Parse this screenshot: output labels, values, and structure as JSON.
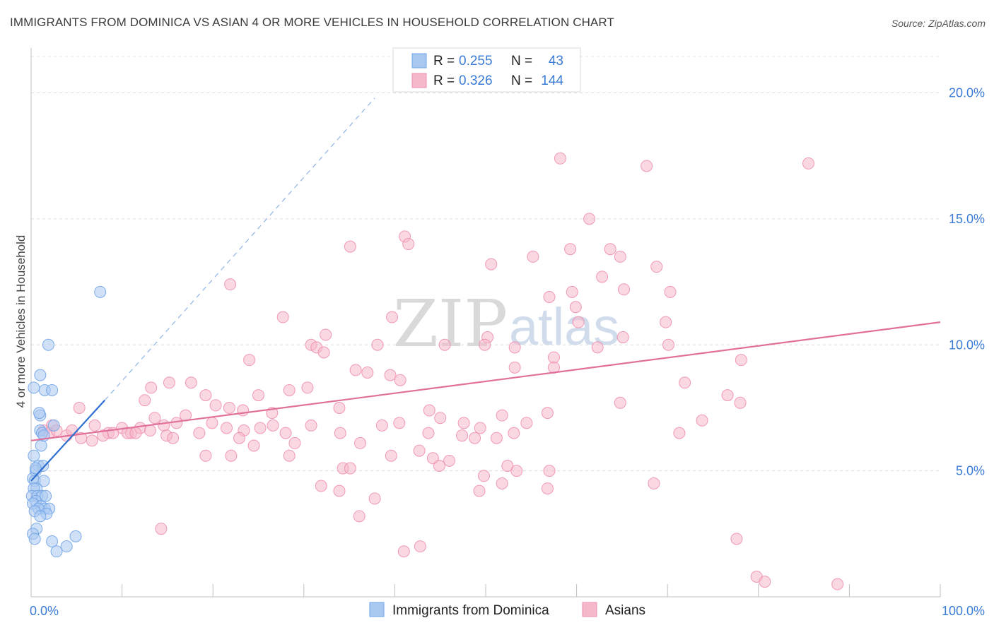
{
  "header": {
    "title": "IMMIGRANTS FROM DOMINICA VS ASIAN 4 OR MORE VEHICLES IN HOUSEHOLD CORRELATION CHART",
    "source": "Source: ZipAtlas.com"
  },
  "watermark": {
    "zip": "ZIP",
    "atlas": "atlas"
  },
  "legend_top": {
    "rows": [
      {
        "r_label": "R =",
        "r_value": "0.255",
        "n_label": "N =",
        "n_value": "43",
        "color": "#a9c8f0"
      },
      {
        "r_label": "R =",
        "r_value": "0.326",
        "n_label": "N =",
        "n_value": "144",
        "color": "#f5b8cb"
      }
    ]
  },
  "legend_bottom": {
    "items": [
      {
        "label": "Immigrants from Dominica",
        "color": "#a9c8f0"
      },
      {
        "label": "Asians",
        "color": "#f5b8cb"
      }
    ]
  },
  "chart_data": {
    "type": "scatter",
    "title": "IMMIGRANTS FROM DOMINICA VS ASIAN 4 OR MORE VEHICLES IN HOUSEHOLD CORRELATION CHART",
    "xlabel": "",
    "ylabel": "4 or more Vehicles in Household",
    "xlim": [
      0,
      100
    ],
    "ylim": [
      0,
      21.5
    ],
    "x_tick_labels": [
      "0.0%",
      "100.0%"
    ],
    "y_ticks": [
      5,
      10,
      15,
      20
    ],
    "y_tick_labels": [
      "5.0%",
      "10.0%",
      "15.0%",
      "20.0%"
    ],
    "grid": true,
    "legend_position": "top-center",
    "series": [
      {
        "name": "Immigrants from Dominica",
        "color": "#6fa3e8",
        "fill": "#a9c8f0",
        "trend": {
          "x": [
            0,
            8.1
          ],
          "y": [
            4.6,
            7.8
          ],
          "style": "solid",
          "color": "#2f6fd1"
        },
        "trend_extension": {
          "x": [
            8.1,
            37.8
          ],
          "y": [
            7.8,
            19.8
          ],
          "style": "dashed",
          "color": "#8fb4e6"
        },
        "points": [
          [
            0.3,
            8.3
          ],
          [
            1.5,
            8.2
          ],
          [
            2.3,
            8.2
          ],
          [
            1.0,
            8.8
          ],
          [
            1.9,
            10.0
          ],
          [
            7.6,
            12.1
          ],
          [
            1.0,
            7.2
          ],
          [
            2.5,
            6.8
          ],
          [
            1.0,
            6.6
          ],
          [
            1.2,
            6.5
          ],
          [
            1.1,
            6.0
          ],
          [
            0.3,
            5.6
          ],
          [
            0.8,
            5.2
          ],
          [
            1.3,
            5.2
          ],
          [
            0.5,
            5.0
          ],
          [
            0.2,
            4.7
          ],
          [
            0.4,
            4.6
          ],
          [
            1.4,
            4.6
          ],
          [
            0.6,
            4.3
          ],
          [
            0.3,
            4.3
          ],
          [
            0.1,
            4.0
          ],
          [
            0.7,
            4.0
          ],
          [
            1.2,
            4.0
          ],
          [
            1.6,
            4.0
          ],
          [
            0.5,
            3.8
          ],
          [
            0.2,
            3.7
          ],
          [
            1.1,
            3.6
          ],
          [
            1.5,
            3.5
          ],
          [
            0.8,
            3.5
          ],
          [
            2.0,
            3.5
          ],
          [
            0.4,
            3.4
          ],
          [
            1.7,
            3.3
          ],
          [
            1.0,
            3.2
          ],
          [
            0.6,
            2.7
          ],
          [
            0.2,
            2.5
          ],
          [
            0.4,
            2.3
          ],
          [
            2.3,
            2.2
          ],
          [
            4.9,
            2.4
          ],
          [
            3.9,
            2.0
          ],
          [
            2.8,
            1.8
          ],
          [
            0.9,
            7.3
          ],
          [
            1.4,
            6.4
          ],
          [
            0.5,
            5.1
          ]
        ]
      },
      {
        "name": "Asians",
        "color": "#ee8fae",
        "fill": "#f5b8cb",
        "trend": {
          "x": [
            0,
            100
          ],
          "y": [
            6.2,
            10.9
          ],
          "style": "solid",
          "color": "#e0709a"
        },
        "points": [
          [
            58.2,
            17.4
          ],
          [
            67.7,
            17.1
          ],
          [
            85.5,
            17.2
          ],
          [
            41.1,
            14.3
          ],
          [
            41.5,
            14.0
          ],
          [
            35.1,
            13.9
          ],
          [
            61.4,
            15.0
          ],
          [
            55.2,
            13.5
          ],
          [
            59.3,
            13.8
          ],
          [
            63.7,
            13.8
          ],
          [
            64.8,
            13.5
          ],
          [
            68.8,
            13.1
          ],
          [
            50.6,
            13.2
          ],
          [
            62.8,
            12.7
          ],
          [
            21.9,
            12.4
          ],
          [
            65.2,
            12.2
          ],
          [
            59.5,
            12.1
          ],
          [
            57.0,
            11.9
          ],
          [
            70.3,
            12.1
          ],
          [
            59.9,
            11.5
          ],
          [
            27.7,
            11.1
          ],
          [
            39.7,
            11.1
          ],
          [
            60.2,
            10.9
          ],
          [
            69.8,
            10.9
          ],
          [
            32.4,
            10.4
          ],
          [
            50.2,
            10.3
          ],
          [
            65.1,
            10.3
          ],
          [
            30.8,
            10.0
          ],
          [
            38.1,
            10.0
          ],
          [
            45.5,
            10.0
          ],
          [
            49.9,
            10.0
          ],
          [
            70.1,
            10.0
          ],
          [
            62.3,
            9.9
          ],
          [
            53.2,
            9.9
          ],
          [
            57.5,
            9.5
          ],
          [
            31.4,
            9.9
          ],
          [
            32.2,
            9.7
          ],
          [
            35.7,
            9.0
          ],
          [
            37.0,
            8.9
          ],
          [
            53.2,
            9.1
          ],
          [
            39.5,
            8.8
          ],
          [
            78.1,
            9.4
          ],
          [
            24.0,
            9.4
          ],
          [
            40.6,
            8.6
          ],
          [
            57.5,
            9.1
          ],
          [
            15.2,
            8.5
          ],
          [
            30.4,
            8.3
          ],
          [
            28.4,
            8.2
          ],
          [
            13.2,
            8.3
          ],
          [
            17.6,
            8.5
          ],
          [
            25.0,
            8.0
          ],
          [
            71.9,
            8.5
          ],
          [
            76.6,
            8.0
          ],
          [
            12.5,
            7.8
          ],
          [
            19.2,
            8.0
          ],
          [
            20.3,
            7.6
          ],
          [
            21.8,
            7.5
          ],
          [
            23.3,
            7.4
          ],
          [
            26.5,
            7.3
          ],
          [
            33.9,
            7.5
          ],
          [
            43.8,
            7.4
          ],
          [
            45.0,
            7.1
          ],
          [
            47.6,
            6.9
          ],
          [
            49.4,
            6.7
          ],
          [
            51.8,
            7.2
          ],
          [
            54.5,
            6.9
          ],
          [
            56.8,
            7.3
          ],
          [
            64.8,
            7.7
          ],
          [
            73.8,
            7.0
          ],
          [
            78.0,
            7.7
          ],
          [
            5.3,
            7.5
          ],
          [
            7.0,
            6.8
          ],
          [
            8.5,
            6.5
          ],
          [
            10.0,
            6.7
          ],
          [
            11.0,
            6.5
          ],
          [
            12.0,
            6.7
          ],
          [
            13.6,
            7.1
          ],
          [
            14.6,
            6.8
          ],
          [
            16.0,
            6.9
          ],
          [
            17.0,
            7.2
          ],
          [
            18.5,
            6.5
          ],
          [
            19.9,
            6.9
          ],
          [
            21.5,
            6.7
          ],
          [
            23.4,
            6.6
          ],
          [
            25.2,
            6.7
          ],
          [
            26.6,
            6.8
          ],
          [
            28.0,
            6.5
          ],
          [
            30.8,
            6.8
          ],
          [
            34.0,
            6.5
          ],
          [
            38.6,
            6.8
          ],
          [
            40.5,
            6.9
          ],
          [
            43.7,
            6.5
          ],
          [
            47.4,
            6.4
          ],
          [
            48.8,
            6.3
          ],
          [
            51.2,
            6.3
          ],
          [
            53.1,
            6.5
          ],
          [
            2.3,
            6.8
          ],
          [
            1.4,
            6.6
          ],
          [
            3.9,
            6.4
          ],
          [
            5.5,
            6.3
          ],
          [
            6.7,
            6.2
          ],
          [
            9.0,
            6.5
          ],
          [
            2.0,
            6.5
          ],
          [
            2.8,
            6.6
          ],
          [
            4.5,
            6.6
          ],
          [
            7.9,
            6.4
          ],
          [
            10.6,
            6.5
          ],
          [
            11.5,
            6.5
          ],
          [
            13.1,
            6.6
          ],
          [
            14.9,
            6.4
          ],
          [
            15.6,
            6.3
          ],
          [
            22.9,
            6.3
          ],
          [
            24.5,
            6.0
          ],
          [
            29.0,
            6.1
          ],
          [
            36.2,
            6.1
          ],
          [
            39.6,
            5.6
          ],
          [
            42.7,
            5.8
          ],
          [
            44.2,
            5.5
          ],
          [
            46.0,
            5.4
          ],
          [
            53.4,
            5.0
          ],
          [
            19.2,
            5.6
          ],
          [
            22.0,
            5.6
          ],
          [
            28.4,
            5.6
          ],
          [
            34.3,
            5.1
          ],
          [
            35.1,
            5.1
          ],
          [
            37.8,
            3.9
          ],
          [
            44.9,
            5.2
          ],
          [
            49.8,
            4.8
          ],
          [
            52.4,
            5.2
          ],
          [
            57.0,
            5.0
          ],
          [
            68.5,
            4.5
          ],
          [
            71.3,
            6.5
          ],
          [
            51.8,
            4.5
          ],
          [
            31.9,
            4.4
          ],
          [
            33.9,
            4.2
          ],
          [
            36.1,
            3.2
          ],
          [
            49.3,
            4.2
          ],
          [
            56.8,
            4.3
          ],
          [
            14.3,
            2.7
          ],
          [
            41.0,
            1.8
          ],
          [
            42.8,
            2.0
          ],
          [
            77.6,
            2.3
          ],
          [
            79.8,
            0.8
          ],
          [
            80.7,
            0.6
          ],
          [
            88.7,
            0.5
          ]
        ]
      }
    ]
  }
}
